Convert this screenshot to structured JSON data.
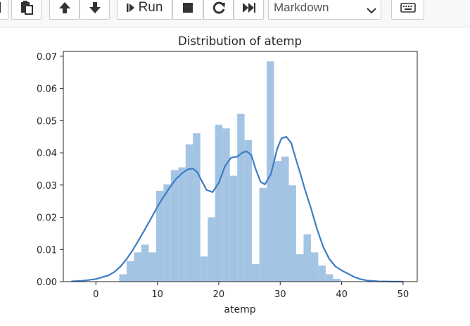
{
  "toolbar": {
    "run_label": "Run",
    "cell_type": "Markdown"
  },
  "icons": {
    "copy": "copy-icon",
    "paste": "paste-icon",
    "move_up": "arrow-up-icon",
    "move_down": "arrow-down-icon",
    "run": "step-forward-icon",
    "interrupt": "stop-icon",
    "restart": "restart-icon",
    "restart_run_all": "fast-forward-icon",
    "command_palette": "keyboard-icon"
  },
  "colors": {
    "bar": "#a4c4e4",
    "kde": "#3d7dc4",
    "axes": "#262626"
  },
  "chart_data": {
    "type": "bar",
    "title": "Distribution of atemp",
    "xlabel": "atemp",
    "ylabel": "",
    "xlim": [
      -5.3,
      52.3
    ],
    "ylim": [
      0,
      0.0715
    ],
    "xticks": [
      0,
      10,
      20,
      30,
      40,
      50
    ],
    "yticks": [
      0.0,
      0.01,
      0.02,
      0.03,
      0.04,
      0.05,
      0.06,
      0.07
    ],
    "ytick_labels": [
      "0.00",
      "0.01",
      "0.02",
      "0.03",
      "0.04",
      "0.05",
      "0.06",
      "0.07"
    ],
    "grid": false,
    "histogram": {
      "bin_width": 1.2,
      "bins": [
        {
          "x0": 3.8,
          "density": 0.0023
        },
        {
          "x0": 5.0,
          "density": 0.0064
        },
        {
          "x0": 6.2,
          "density": 0.0091
        },
        {
          "x0": 7.4,
          "density": 0.0115
        },
        {
          "x0": 8.6,
          "density": 0.0091
        },
        {
          "x0": 9.8,
          "density": 0.0282
        },
        {
          "x0": 11.0,
          "density": 0.0302
        },
        {
          "x0": 12.2,
          "density": 0.0346
        },
        {
          "x0": 13.4,
          "density": 0.0355
        },
        {
          "x0": 14.6,
          "density": 0.0426
        },
        {
          "x0": 15.8,
          "density": 0.0461
        },
        {
          "x0": 17.0,
          "density": 0.0078
        },
        {
          "x0": 18.2,
          "density": 0.02
        },
        {
          "x0": 19.4,
          "density": 0.0487
        },
        {
          "x0": 20.6,
          "density": 0.0476
        },
        {
          "x0": 21.8,
          "density": 0.0329
        },
        {
          "x0": 23.0,
          "density": 0.0521
        },
        {
          "x0": 24.2,
          "density": 0.044
        },
        {
          "x0": 25.4,
          "density": 0.0055
        },
        {
          "x0": 26.6,
          "density": 0.0291
        },
        {
          "x0": 27.8,
          "density": 0.0684
        },
        {
          "x0": 29.0,
          "density": 0.0374
        },
        {
          "x0": 30.2,
          "density": 0.0388
        },
        {
          "x0": 31.4,
          "density": 0.0299
        },
        {
          "x0": 32.6,
          "density": 0.0085
        },
        {
          "x0": 33.8,
          "density": 0.0147
        },
        {
          "x0": 35.0,
          "density": 0.0091
        },
        {
          "x0": 36.2,
          "density": 0.005
        },
        {
          "x0": 37.4,
          "density": 0.0023
        },
        {
          "x0": 38.6,
          "density": 0.0009
        }
      ]
    },
    "kde": {
      "x": [
        -4,
        -2,
        0,
        2,
        3,
        4,
        5,
        6,
        7,
        8,
        9,
        10,
        11,
        12,
        13,
        14,
        15,
        15.8,
        16.5,
        17.2,
        18,
        19,
        20,
        21,
        22,
        23,
        23.8,
        24.5,
        25.3,
        26,
        26.8,
        27.5,
        28.5,
        29.5,
        30.2,
        31,
        31.8,
        32.5,
        33.3,
        34,
        35,
        36,
        37,
        38,
        39,
        40,
        41,
        42,
        43,
        44,
        46,
        48,
        50
      ],
      "y": [
        0.0001,
        0.0003,
        0.0008,
        0.0019,
        0.003,
        0.0047,
        0.007,
        0.0098,
        0.013,
        0.0163,
        0.0197,
        0.0232,
        0.0263,
        0.0292,
        0.0318,
        0.0336,
        0.0349,
        0.0351,
        0.034,
        0.0314,
        0.0285,
        0.0278,
        0.0307,
        0.0358,
        0.0385,
        0.0388,
        0.04,
        0.0405,
        0.0393,
        0.035,
        0.031,
        0.0302,
        0.0335,
        0.0412,
        0.0445,
        0.045,
        0.043,
        0.0384,
        0.0334,
        0.0288,
        0.0228,
        0.0163,
        0.0108,
        0.007,
        0.0047,
        0.0035,
        0.0025,
        0.0015,
        0.0008,
        0.0004,
        0.0001,
        3e-05,
        0.0
      ]
    }
  }
}
